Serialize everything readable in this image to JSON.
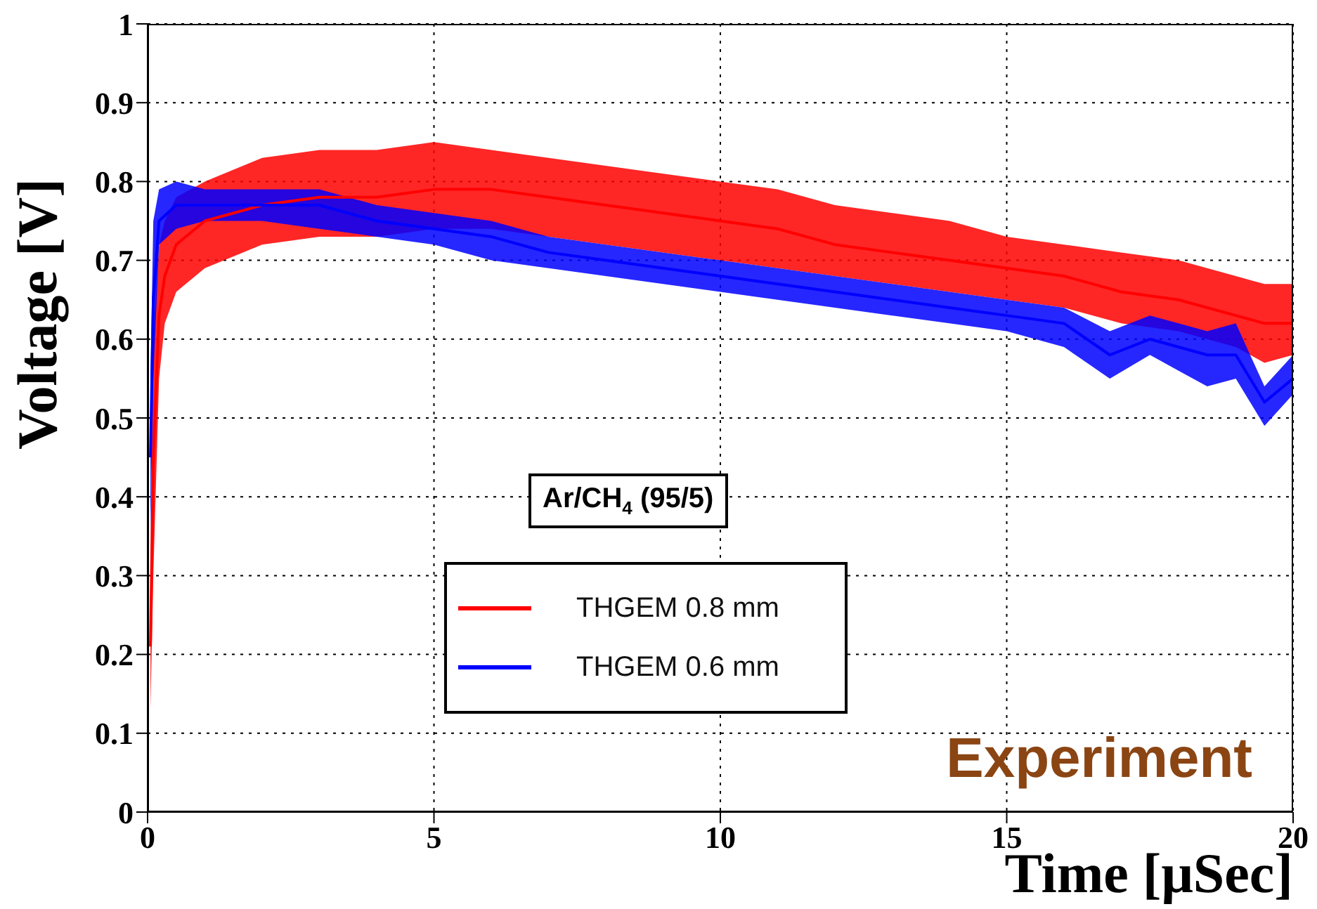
{
  "chart_data": {
    "type": "line",
    "xlabel": "Time [μSec]",
    "ylabel": "Voltage [V]",
    "xlim": [
      0,
      20
    ],
    "ylim": [
      0,
      1
    ],
    "xticks": [
      0,
      5,
      10,
      15,
      20
    ],
    "yticks": [
      0,
      0.1,
      0.2,
      0.3,
      0.4,
      0.5,
      0.6,
      0.7,
      0.8,
      0.9,
      1
    ],
    "grid": true,
    "legend": "bottom",
    "line_style": "solid",
    "marker": "none",
    "annotations": [
      "Ar/CH$_{4}$ (95/5)",
      "Experiment"
    ],
    "series": [
      {
        "name": "THGEM 0.8 mm",
        "color": "#ff0000",
        "x": [
          0.05,
          0.1,
          0.2,
          0.3,
          0.5,
          1,
          2,
          3,
          4,
          5,
          6,
          7,
          8,
          9,
          10,
          11,
          12,
          13,
          14,
          15,
          16,
          17,
          18,
          19,
          19.5,
          20
        ],
        "values": [
          0.21,
          0.45,
          0.63,
          0.68,
          0.72,
          0.75,
          0.77,
          0.78,
          0.78,
          0.79,
          0.79,
          0.78,
          0.77,
          0.76,
          0.75,
          0.74,
          0.72,
          0.71,
          0.7,
          0.69,
          0.68,
          0.66,
          0.65,
          0.63,
          0.62,
          0.62
        ],
        "lower": [
          0.13,
          0.3,
          0.55,
          0.62,
          0.66,
          0.69,
          0.72,
          0.73,
          0.73,
          0.74,
          0.74,
          0.73,
          0.72,
          0.71,
          0.7,
          0.69,
          0.68,
          0.67,
          0.66,
          0.65,
          0.64,
          0.62,
          0.61,
          0.59,
          0.57,
          0.58
        ],
        "upper": [
          0.3,
          0.6,
          0.72,
          0.75,
          0.78,
          0.8,
          0.83,
          0.84,
          0.84,
          0.85,
          0.84,
          0.83,
          0.82,
          0.81,
          0.8,
          0.79,
          0.77,
          0.76,
          0.75,
          0.73,
          0.72,
          0.71,
          0.7,
          0.68,
          0.67,
          0.67
        ]
      },
      {
        "name": "THGEM 0.6 mm",
        "color": "#0000ff",
        "x": [
          0.05,
          0.1,
          0.2,
          0.5,
          1,
          2,
          3,
          4,
          5,
          6,
          7,
          8,
          9,
          10,
          11,
          12,
          13,
          14,
          15,
          16,
          16.8,
          17.5,
          18,
          18.5,
          19,
          19.5,
          20
        ],
        "values": [
          0.45,
          0.65,
          0.75,
          0.77,
          0.77,
          0.77,
          0.77,
          0.75,
          0.74,
          0.73,
          0.71,
          0.7,
          0.69,
          0.68,
          0.67,
          0.66,
          0.65,
          0.64,
          0.63,
          0.62,
          0.58,
          0.6,
          0.59,
          0.58,
          0.58,
          0.52,
          0.55
        ],
        "lower": [
          0.35,
          0.55,
          0.72,
          0.74,
          0.75,
          0.75,
          0.74,
          0.73,
          0.72,
          0.7,
          0.69,
          0.68,
          0.67,
          0.66,
          0.65,
          0.64,
          0.63,
          0.62,
          0.61,
          0.59,
          0.55,
          0.58,
          0.56,
          0.54,
          0.55,
          0.49,
          0.53
        ],
        "upper": [
          0.55,
          0.75,
          0.79,
          0.8,
          0.79,
          0.79,
          0.79,
          0.77,
          0.76,
          0.75,
          0.73,
          0.72,
          0.71,
          0.7,
          0.69,
          0.68,
          0.67,
          0.66,
          0.65,
          0.64,
          0.61,
          0.63,
          0.62,
          0.61,
          0.62,
          0.54,
          0.58
        ]
      }
    ]
  }
}
